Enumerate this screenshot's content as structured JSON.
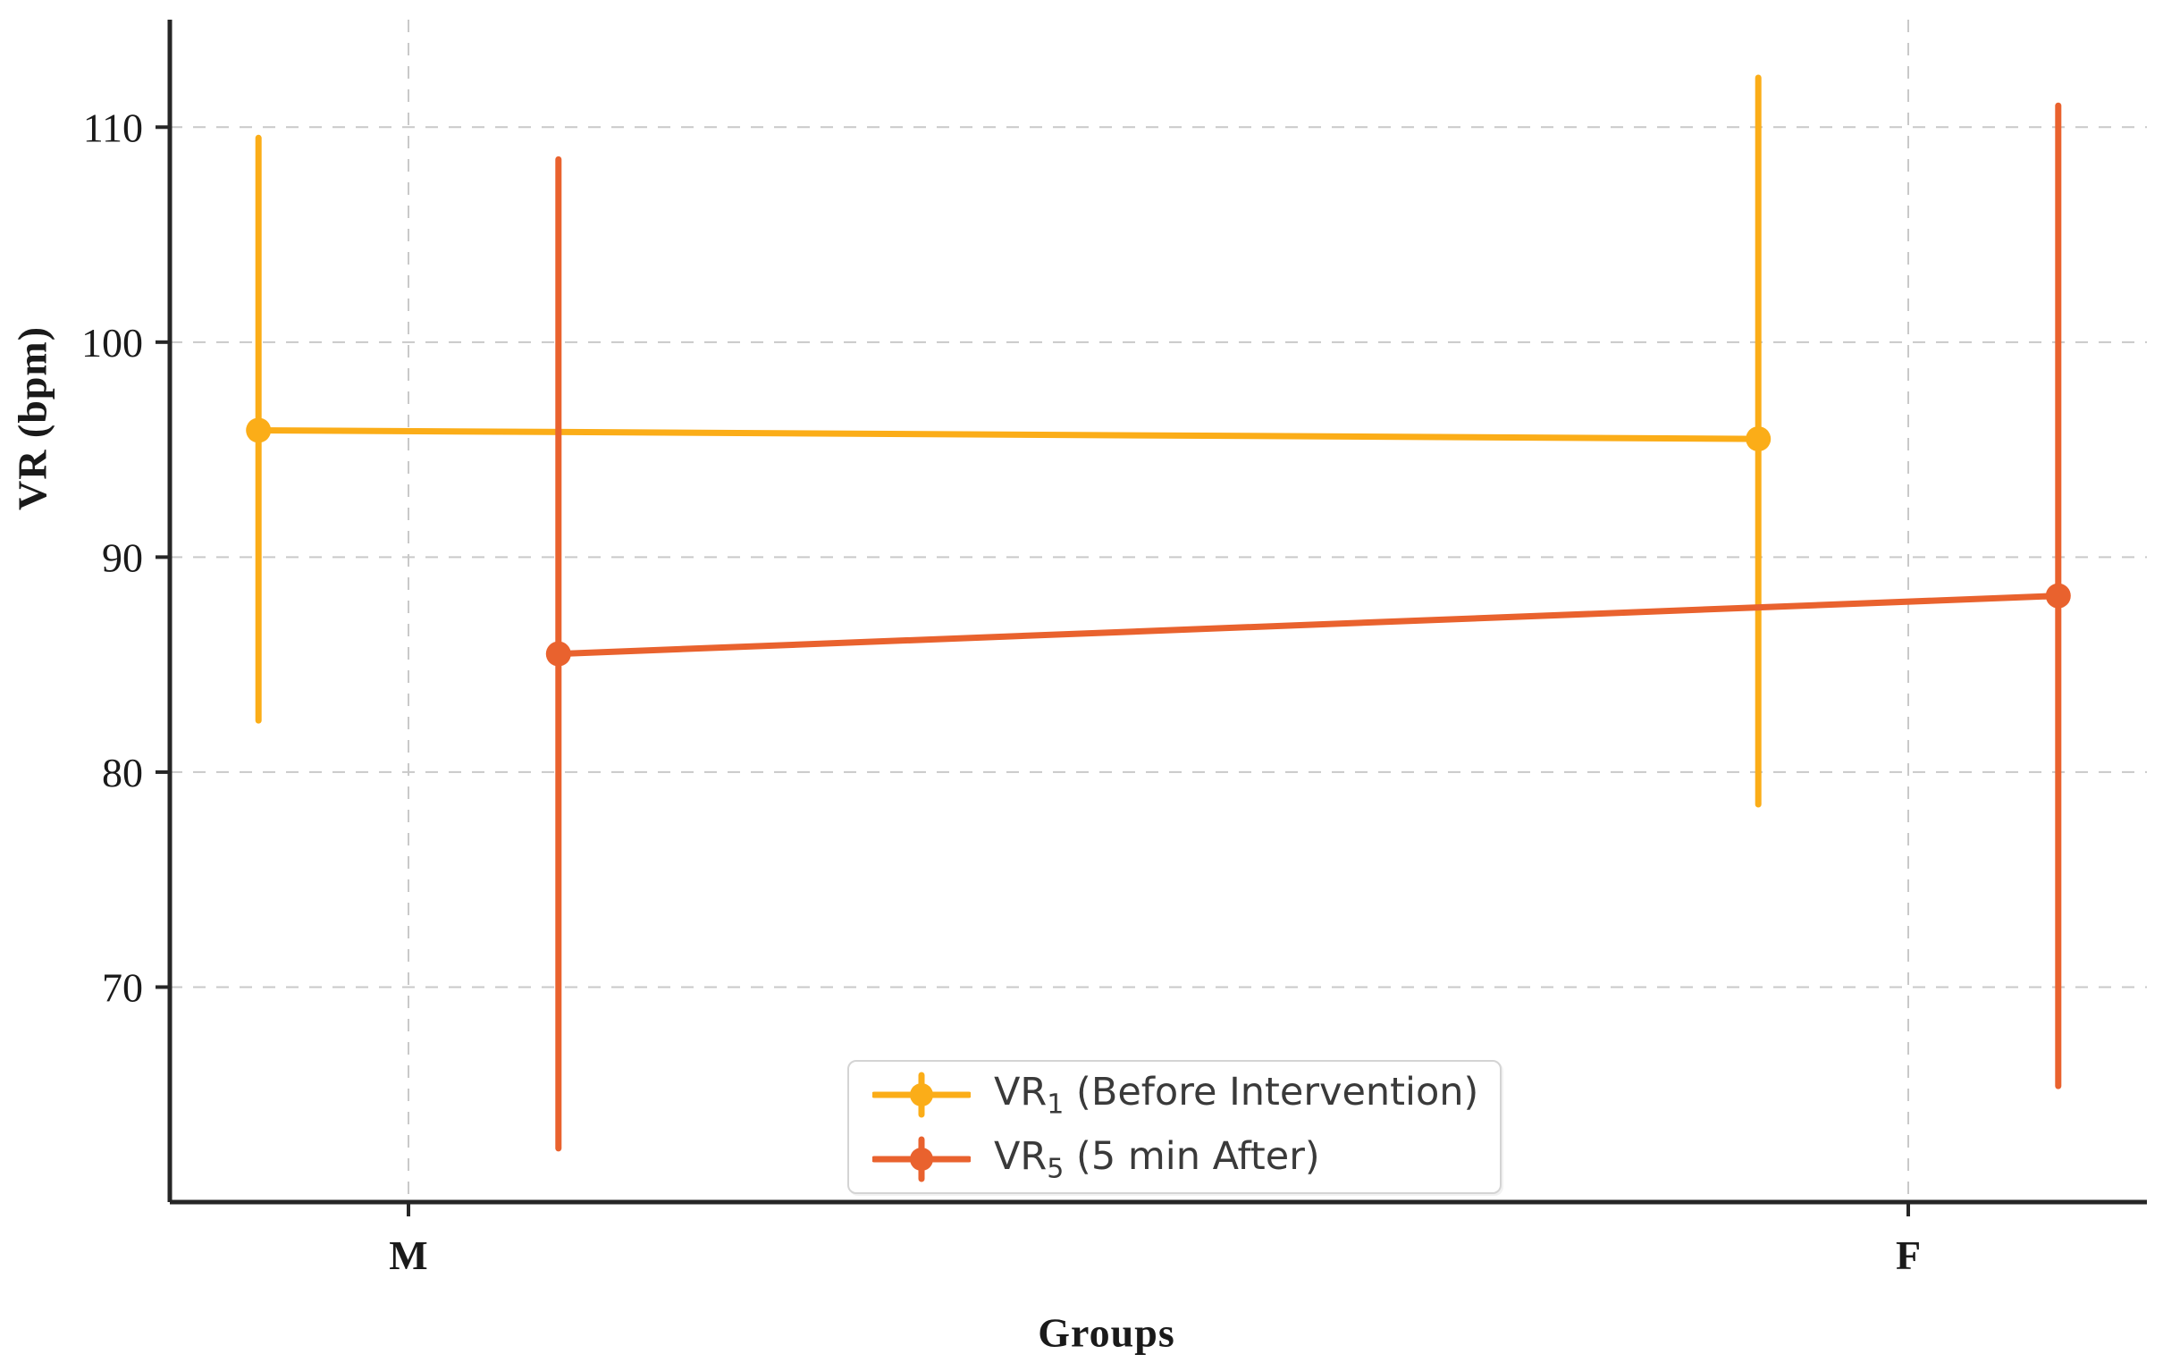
{
  "chart_data": {
    "type": "line",
    "subtype": "errorbar-pointplot",
    "title": "",
    "xlabel": "Groups",
    "ylabel": "VR (bpm)",
    "categories": [
      "M",
      "F"
    ],
    "y_ticks": [
      70,
      80,
      90,
      100,
      110
    ],
    "ylim": [
      60,
      115
    ],
    "grid": {
      "horizontal": true,
      "vertical": true,
      "style": "dashed",
      "color": "#c9c9c9"
    },
    "legend_position": "lower center",
    "axis_color": "#262626",
    "tick_label_color": "#1a1a1a",
    "series": [
      {
        "name": "VR1 (Before Intervention)",
        "legend_prefix": "VR",
        "legend_sub": "1",
        "legend_rest": " (Before Intervention)",
        "color": "#FBAD18",
        "values": [
          95.9,
          95.5
        ],
        "err_low": [
          82.4,
          78.5
        ],
        "err_high": [
          109.5,
          112.3
        ],
        "x_offset": -0.1
      },
      {
        "name": "VR5 (5 min After)",
        "legend_prefix": "VR",
        "legend_sub": "5",
        "legend_rest": " (5 min After)",
        "color": "#E9622E",
        "values": [
          85.5,
          88.2
        ],
        "err_low": [
          62.5,
          65.4
        ],
        "err_high": [
          108.5,
          111.0
        ],
        "x_offset": 0.1
      }
    ]
  }
}
